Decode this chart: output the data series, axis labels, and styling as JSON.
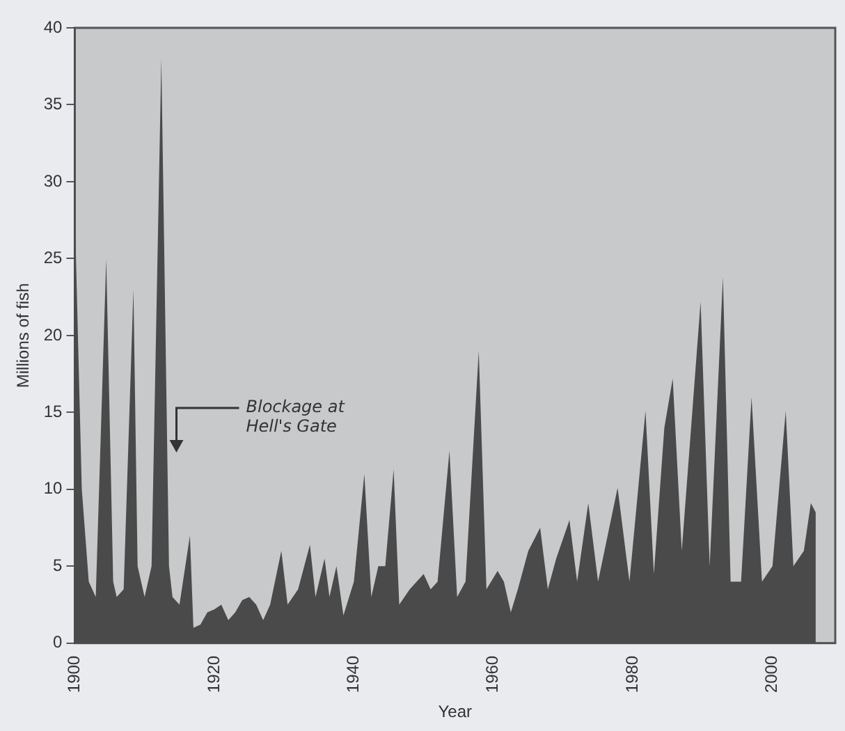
{
  "chart_data": {
    "type": "area",
    "xlabel": "Year",
    "ylabel": "Millions of fish",
    "x": [
      1900,
      1901,
      1902,
      1903,
      1904.5,
      1905.5,
      1906,
      1907,
      1908.4,
      1909,
      1910,
      1911,
      1912.4,
      1913.5,
      1914,
      1915,
      1916.5,
      1917,
      1918,
      1919,
      1920,
      1921,
      1922,
      1923,
      1924,
      1925,
      1926,
      1927,
      1928,
      1929.6,
      1930.5,
      1932,
      1933.7,
      1934.5,
      1935.8,
      1936.5,
      1937.5,
      1938.5,
      1940,
      1941.5,
      1942.5,
      1943.5,
      1944.5,
      1945.7,
      1946.5,
      1948,
      1950,
      1951,
      1952,
      1953.7,
      1954.8,
      1956,
      1957.9,
      1959,
      1960.6,
      1961.5,
      1962.5,
      1963.5,
      1965,
      1966.7,
      1967.8,
      1969,
      1970.9,
      1972,
      1973.6,
      1975,
      1977.8,
      1979.5,
      1981.8,
      1983,
      1984.5,
      1985.7,
      1987,
      1988.5,
      1989.7,
      1991,
      1992.9,
      1994,
      1995.5,
      1997,
      1998.5,
      2000,
      2001.9,
      2003,
      2004.5,
      2005.5,
      2006.2
    ],
    "series": [
      {
        "color": "#4a4a4a",
        "values": [
          28,
          10,
          4,
          3,
          25,
          4,
          3,
          3.5,
          23,
          5,
          3,
          5,
          38,
          5,
          3,
          2.5,
          7,
          1,
          1.2,
          2,
          2.2,
          2.5,
          1.5,
          2,
          2.8,
          3,
          2.5,
          1.5,
          2.5,
          6,
          2.5,
          3.5,
          6.4,
          3,
          5.5,
          3,
          5,
          1.8,
          4,
          11,
          3,
          5,
          5,
          11.3,
          2.5,
          3.5,
          4.5,
          3.5,
          4,
          12.5,
          3,
          4,
          19,
          3.5,
          4.7,
          4,
          2,
          3.5,
          6,
          7.5,
          3.5,
          5.5,
          8,
          4,
          9.1,
          4,
          10.1,
          4,
          15.1,
          4.5,
          14,
          17.2,
          6,
          15,
          22.2,
          5,
          23.8,
          4,
          4,
          16,
          4,
          5,
          15.1,
          5,
          6,
          9.1,
          8.5
        ]
      }
    ],
    "xlim": [
      1900,
      2009
    ],
    "xticks": [
      1900,
      1920,
      1940,
      1960,
      1980,
      2000
    ],
    "ylim": [
      0,
      40
    ],
    "yticks": [
      0,
      5,
      10,
      15,
      20,
      25,
      30,
      35,
      40
    ],
    "annotations": [
      "Blockage at Hell's Gate"
    ],
    "grid": false,
    "legend": false,
    "marker": "none"
  }
}
